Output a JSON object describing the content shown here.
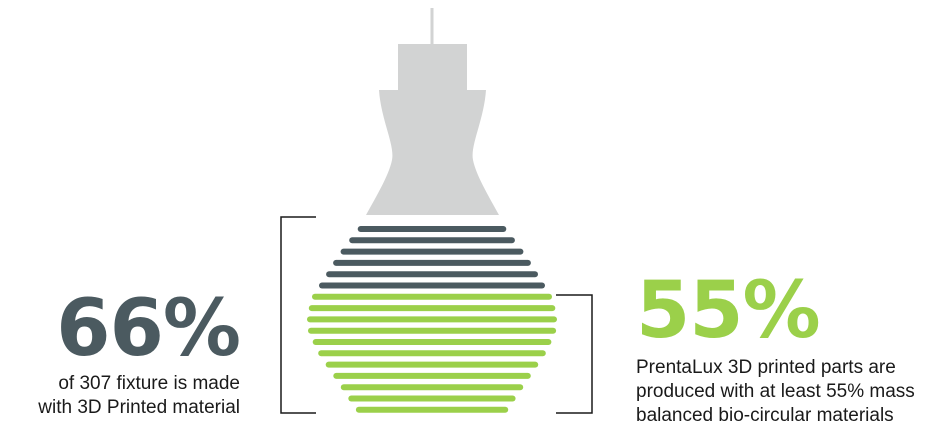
{
  "colors": {
    "dark_slate": "#4b5a60",
    "lime_green": "#9bd04a",
    "light_gray": "#d2d3d3",
    "bracket_black": "#1a1a1a"
  },
  "left_stat": {
    "value": "66%",
    "description": [
      "of 307 fixture is made",
      "with 3D Printed material"
    ]
  },
  "right_stat": {
    "value": "55%",
    "description": [
      "PrentaLux 3D printed parts are",
      "produced with at least 55% mass",
      "balanced bio-circular materials"
    ]
  },
  "illustration": {
    "dark_stripe_count": 6,
    "green_stripe_count": 11
  }
}
